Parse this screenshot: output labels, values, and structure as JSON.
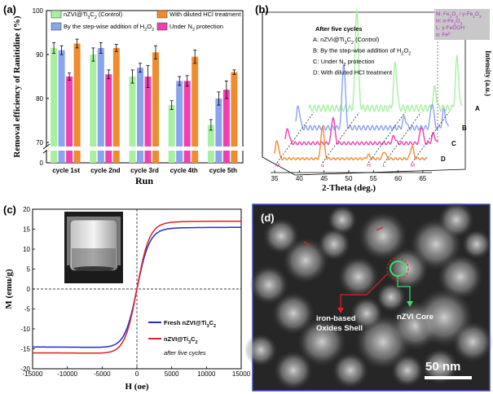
{
  "panels": {
    "a": "(a)",
    "b": "(b)",
    "c": "(c)",
    "d": "(d)"
  },
  "chart_data": [
    {
      "id": "a",
      "type": "bar",
      "title": "",
      "xlabel": "Run",
      "ylabel": "Removal efficiency of Ranitidine (%)",
      "ylim": [
        0,
        100
      ],
      "yticks": [
        0,
        70,
        80,
        90,
        100
      ],
      "axis_break": true,
      "categories": [
        "cycle 1st",
        "cycle 2nd",
        "cycle 3rd",
        "cycle 4th",
        "cycle 5th"
      ],
      "series": [
        {
          "name": "nZVI@Ti3C2 (Control)",
          "name_parts": [
            "nZVI@Ti",
            "3",
            "C",
            "2",
            " (Control)"
          ],
          "color": "#a8f0a0",
          "values": [
            91.5,
            90.0,
            85.0,
            78.5,
            74.0
          ],
          "errors": [
            1.2,
            1.5,
            1.5,
            1.0,
            1.2
          ]
        },
        {
          "name": "By the step-wise addition of H2O2",
          "name_parts": [
            "By the step-wise addition of H",
            "2",
            "O",
            "2",
            ""
          ],
          "color": "#8aa4f0",
          "values": [
            91.0,
            91.5,
            87.0,
            84.0,
            80.0
          ],
          "errors": [
            1.0,
            1.2,
            1.0,
            1.0,
            1.5
          ]
        },
        {
          "name": "Under N2 protection",
          "name_parts": [
            "Under N",
            "2",
            " protection",
            "",
            ""
          ],
          "color": "#f040b0",
          "values": [
            85.0,
            85.5,
            85.0,
            84.0,
            82.0
          ],
          "errors": [
            0.8,
            1.0,
            2.5,
            1.2,
            2.0
          ]
        },
        {
          "name": "With diluted HCl treatment",
          "name_parts": [
            "With diluted HCl treatment",
            "",
            "",
            "",
            ""
          ],
          "color": "#f08c30",
          "values": [
            92.5,
            91.5,
            90.5,
            89.5,
            86.0
          ],
          "errors": [
            1.0,
            0.8,
            1.5,
            1.5,
            0.5
          ]
        }
      ]
    },
    {
      "id": "b",
      "type": "line",
      "title": "",
      "xlabel": "2-Theta (deg.)",
      "ylabel": "Intensity (a.u.)",
      "xlim": [
        35,
        66
      ],
      "xticks": [
        35,
        40,
        45,
        50,
        55,
        60,
        65
      ],
      "legend_title": "After five cycles",
      "legend_entries": [
        {
          "pre": "A: nZVI@Ti",
          "s1": "3",
          "mid": "C",
          "s2": "2",
          "post": "  (Control)"
        },
        {
          "pre": "B: By the step-wise addition of H",
          "s1": "2",
          "mid": "O",
          "s2": "2",
          "post": ""
        },
        {
          "pre": "C: Under N",
          "s1": "2",
          "mid": " protection",
          "s2": "",
          "post": ""
        },
        {
          "pre": "D: With diluted HCl treatment",
          "s1": "",
          "mid": "",
          "s2": "",
          "post": ""
        }
      ],
      "phase_key": [
        {
          "pre": "M: Fe",
          "s1": "3",
          "mid": "O",
          "s2": "4",
          "post": " / γ-Fe",
          "s3": "2",
          "mid2": "O",
          "s4": "3"
        },
        {
          "pre": "H: α-Fe",
          "s1": "2",
          "mid": "O",
          "s2": "3",
          "post": "",
          "s3": "",
          "mid2": "",
          "s4": ""
        },
        {
          "pre": "L: γ-FeOOH",
          "s1": "",
          "mid": "",
          "s2": "",
          "post": "",
          "s3": "",
          "mid2": "",
          "s4": ""
        },
        {
          "pre": "α: Fe",
          "s1": "",
          "mid": "",
          "s2": "",
          "post": "",
          "s3": "",
          "mid2": "",
          "s4": "",
          "sup": "0"
        }
      ],
      "series": [
        {
          "name": "A",
          "color": "#a8f0a0",
          "peaks": [
            [
              44.7,
              1.0
            ],
            [
              52.5,
              0.45
            ],
            [
              60.5,
              0.2
            ],
            [
              65.0,
              0.5
            ]
          ]
        },
        {
          "name": "B",
          "color": "#8aa4f0",
          "peaks": [
            [
              35.5,
              0.3
            ],
            [
              44.7,
              0.9
            ],
            [
              57.0,
              0.15
            ],
            [
              62.6,
              0.35
            ],
            [
              65.0,
              0.25
            ]
          ]
        },
        {
          "name": "C",
          "color": "#f040b0",
          "peaks": [
            [
              35.5,
              0.3
            ],
            [
              44.7,
              0.55
            ],
            [
              57.0,
              0.15
            ],
            [
              62.6,
              0.35
            ],
            [
              65.0,
              0.2
            ]
          ]
        },
        {
          "name": "D",
          "color": "#f08c30",
          "peaks": [
            [
              35.5,
              0.5
            ],
            [
              44.7,
              0.9
            ],
            [
              54.0,
              0.1
            ],
            [
              57.2,
              0.2
            ],
            [
              62.8,
              0.35
            ]
          ]
        }
      ],
      "peak_labels": [
        {
          "text": "M",
          "x": 35.5,
          "color": "#d0309a"
        },
        {
          "text": "α",
          "x": 44.7,
          "color": "#d0309a"
        },
        {
          "text": "H",
          "x": 54.0,
          "color": "#d0309a"
        },
        {
          "text": "L",
          "x": 57.2,
          "color": "#d0309a"
        },
        {
          "text": "M",
          "x": 62.8,
          "color": "#d0309a"
        }
      ]
    },
    {
      "id": "c",
      "type": "line",
      "title": "",
      "xlabel": "H (oe)",
      "ylabel": "M (emu/g)",
      "xlim": [
        -15000,
        15000
      ],
      "ylim": [
        -20,
        20
      ],
      "xticks": [
        -15000,
        -10000,
        -5000,
        0,
        5000,
        10000,
        15000
      ],
      "yticks": [
        -20,
        -15,
        -10,
        -5,
        0,
        5,
        10,
        15,
        20
      ],
      "series": [
        {
          "name": "Fresh nZVI@Ti3C2",
          "label_parts": [
            "Fresh nZVI@Ti",
            "3",
            "C",
            "2"
          ],
          "color": "#1f2fc8",
          "ms": 15.0
        },
        {
          "name": "nZVI@Ti3C2 after five cycles",
          "label_parts": [
            "nZVI@Ti",
            "3",
            "C",
            "2"
          ],
          "note": "after five cycles",
          "color": "#e02020",
          "ms": 16.5
        }
      ]
    }
  ],
  "tem": {
    "labels": [
      "iron-based",
      "Oxides Shell",
      "nZVI Core"
    ],
    "scale_bar": "50 nm"
  }
}
